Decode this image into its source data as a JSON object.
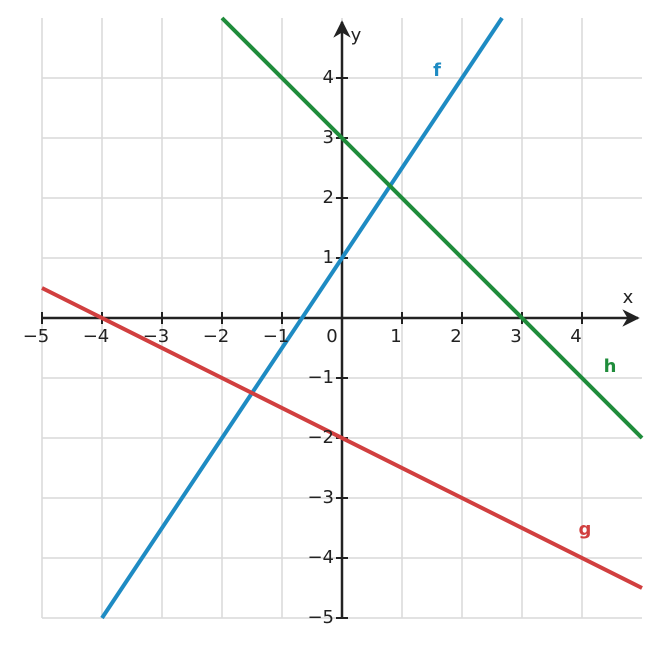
{
  "chart_data": {
    "type": "line",
    "x_label": "x",
    "y_label": "y",
    "xlim": [
      -5,
      5
    ],
    "ylim": [
      -5,
      5
    ],
    "xticks": [
      {
        "value": -5,
        "label": "−5"
      },
      {
        "value": -4,
        "label": "−4"
      },
      {
        "value": -3,
        "label": "−3"
      },
      {
        "value": -2,
        "label": "−2"
      },
      {
        "value": -1,
        "label": "−1"
      },
      0,
      1,
      2,
      3,
      4
    ],
    "yticks": [
      {
        "value": -5,
        "label": "−5"
      },
      {
        "value": -4,
        "label": "−4"
      },
      {
        "value": -3,
        "label": "−3"
      },
      {
        "value": -2,
        "label": "−2"
      },
      {
        "value": -1,
        "label": "−1"
      },
      1,
      2,
      3,
      4
    ],
    "grid": true,
    "series": [
      {
        "name": "f",
        "color": "#1e8bc3",
        "x": [
          -4,
          2.667
        ],
        "values": [
          -5,
          5
        ]
      },
      {
        "name": "g",
        "color": "#d13f3f",
        "x": [
          -5,
          5
        ],
        "values": [
          0.5,
          -4.5
        ]
      },
      {
        "name": "h",
        "color": "#1f8c3b",
        "x": [
          -2,
          5
        ],
        "values": [
          5,
          -2
        ]
      }
    ]
  }
}
